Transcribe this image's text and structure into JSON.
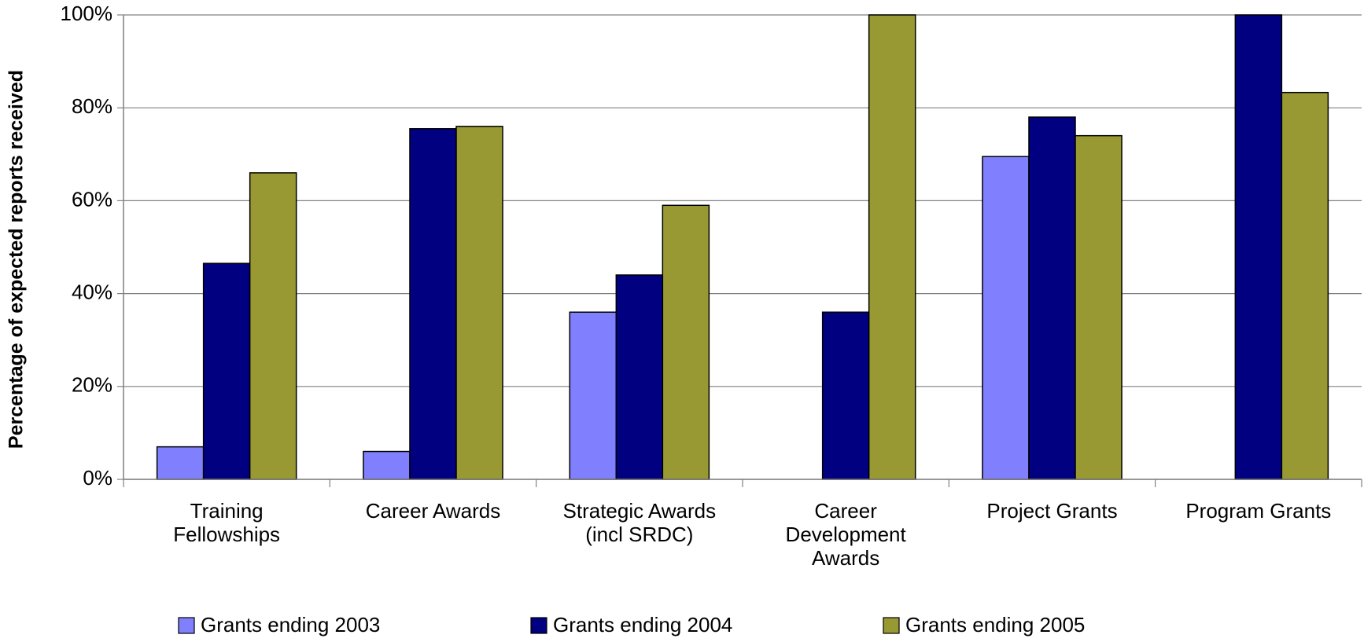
{
  "chart_data": {
    "type": "bar",
    "y_label": "Percentage of expected reports received",
    "categories": [
      "Training Fellowships",
      "Career Awards",
      "Strategic Awards (incl SRDC)",
      "Career Development Awards",
      "Project Grants",
      "Program Grants"
    ],
    "series": [
      {
        "name": "Grants ending 2003",
        "color": "#8080ff",
        "values": [
          7,
          6,
          36,
          null,
          69.5,
          null
        ]
      },
      {
        "name": "Grants ending 2004",
        "color": "#000080",
        "values": [
          46.5,
          75.5,
          44,
          36,
          78,
          100
        ]
      },
      {
        "name": "Grants ending 2005",
        "color": "#999933",
        "values": [
          66,
          76,
          59,
          100,
          74,
          83.3
        ]
      }
    ],
    "ylim": [
      0,
      100
    ],
    "yticks": [
      {
        "value": 0,
        "label": "0%"
      },
      {
        "value": 20,
        "label": "20%"
      },
      {
        "value": 40,
        "label": "40%"
      },
      {
        "value": 60,
        "label": "60%"
      },
      {
        "value": 80,
        "label": "80%"
      },
      {
        "value": 100,
        "label": "100%"
      }
    ],
    "grid": true,
    "legend": "bottom"
  }
}
